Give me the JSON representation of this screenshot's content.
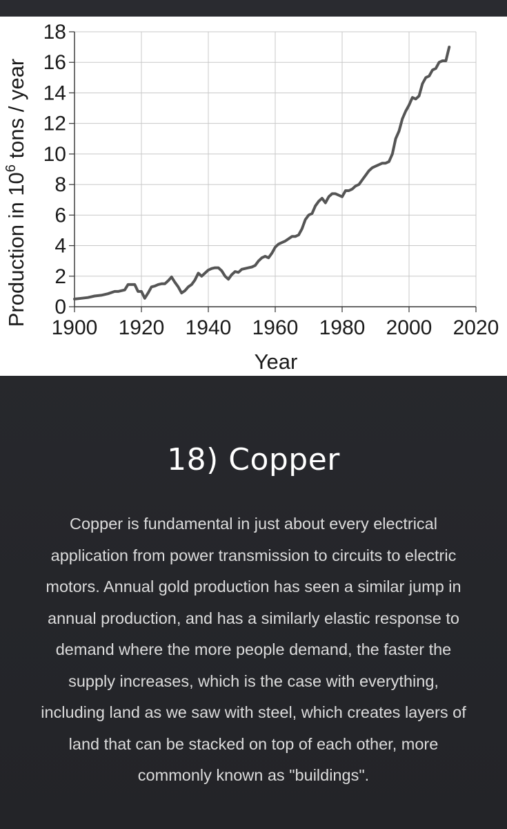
{
  "chart_data": {
    "type": "line",
    "title": "",
    "xlabel": "Year",
    "ylabel": "Production in 10",
    "ylabel_superscript": "6",
    "ylabel_suffix": " tons / year",
    "xlim": [
      1900,
      2020
    ],
    "ylim": [
      0,
      18
    ],
    "grid": true,
    "x_ticks": [
      "1900",
      "1920",
      "1940",
      "1960",
      "1980",
      "2000",
      "2020"
    ],
    "y_ticks": [
      "0",
      "2",
      "4",
      "6",
      "8",
      "10",
      "12",
      "14",
      "16",
      "18"
    ],
    "line_color": "#555555",
    "series": [
      {
        "x": [
          1900,
          1902,
          1904,
          1906,
          1908,
          1910,
          1912,
          1913,
          1915,
          1916,
          1917,
          1918,
          1919,
          1920,
          1921,
          1922,
          1923,
          1924,
          1925,
          1926,
          1927,
          1928,
          1929,
          1930,
          1931,
          1932,
          1933,
          1934,
          1935,
          1936,
          1937,
          1938,
          1939,
          1940,
          1941,
          1942,
          1943,
          1944,
          1945,
          1946,
          1947,
          1948,
          1949,
          1950,
          1951,
          1952,
          1953,
          1954,
          1955,
          1956,
          1957,
          1958,
          1959,
          1960,
          1961,
          1962,
          1963,
          1964,
          1965,
          1966,
          1967,
          1968,
          1969,
          1970,
          1971,
          1972,
          1973,
          1974,
          1975,
          1976,
          1977,
          1978,
          1979,
          1980,
          1981,
          1982,
          1983,
          1984,
          1985,
          1986,
          1987,
          1988,
          1989,
          1990,
          1991,
          1992,
          1993,
          1994,
          1995,
          1996,
          1997,
          1998,
          1999,
          2000,
          2001,
          2002,
          2003,
          2004,
          2005,
          2006,
          2007,
          2008,
          2009,
          2010,
          2011,
          2012
        ],
        "y": [
          0.5,
          0.55,
          0.6,
          0.7,
          0.75,
          0.85,
          1.0,
          1.0,
          1.1,
          1.45,
          1.45,
          1.45,
          1.0,
          1.0,
          0.55,
          0.9,
          1.3,
          1.35,
          1.45,
          1.5,
          1.5,
          1.7,
          1.95,
          1.6,
          1.3,
          0.9,
          1.05,
          1.3,
          1.45,
          1.75,
          2.2,
          2.0,
          2.2,
          2.4,
          2.5,
          2.55,
          2.55,
          2.35,
          2.0,
          1.8,
          2.1,
          2.3,
          2.25,
          2.45,
          2.5,
          2.55,
          2.6,
          2.7,
          3.0,
          3.2,
          3.3,
          3.2,
          3.5,
          3.9,
          4.1,
          4.2,
          4.3,
          4.45,
          4.6,
          4.6,
          4.7,
          5.1,
          5.7,
          6.0,
          6.1,
          6.6,
          6.9,
          7.1,
          6.8,
          7.2,
          7.4,
          7.4,
          7.3,
          7.2,
          7.6,
          7.6,
          7.7,
          7.9,
          8.0,
          8.3,
          8.6,
          8.9,
          9.1,
          9.2,
          9.3,
          9.4,
          9.4,
          9.5,
          10.0,
          11.0,
          11.5,
          12.3,
          12.8,
          13.2,
          13.7,
          13.6,
          13.8,
          14.6,
          15.0,
          15.1,
          15.5,
          15.6,
          16.0,
          16.1,
          16.1,
          17.0
        ]
      }
    ]
  },
  "article": {
    "heading": "18) Copper",
    "body": "Copper is fundamental in just about every electrical application from power transmission to circuits to electric motors. Annual gold production has seen a similar jump in annual production, and has a similarly elastic response to demand where the more people demand, the faster the supply increases, which is the case with everything, including land as we saw with steel, which creates layers of land that can be stacked on top of each other, more commonly known as \"buildings\"."
  },
  "colors": {
    "background": "#26272b",
    "heading": "#ffffff",
    "body_text": "#dcdcdc",
    "chart_background": "#ffffff",
    "grid": "#c8c8c8"
  }
}
